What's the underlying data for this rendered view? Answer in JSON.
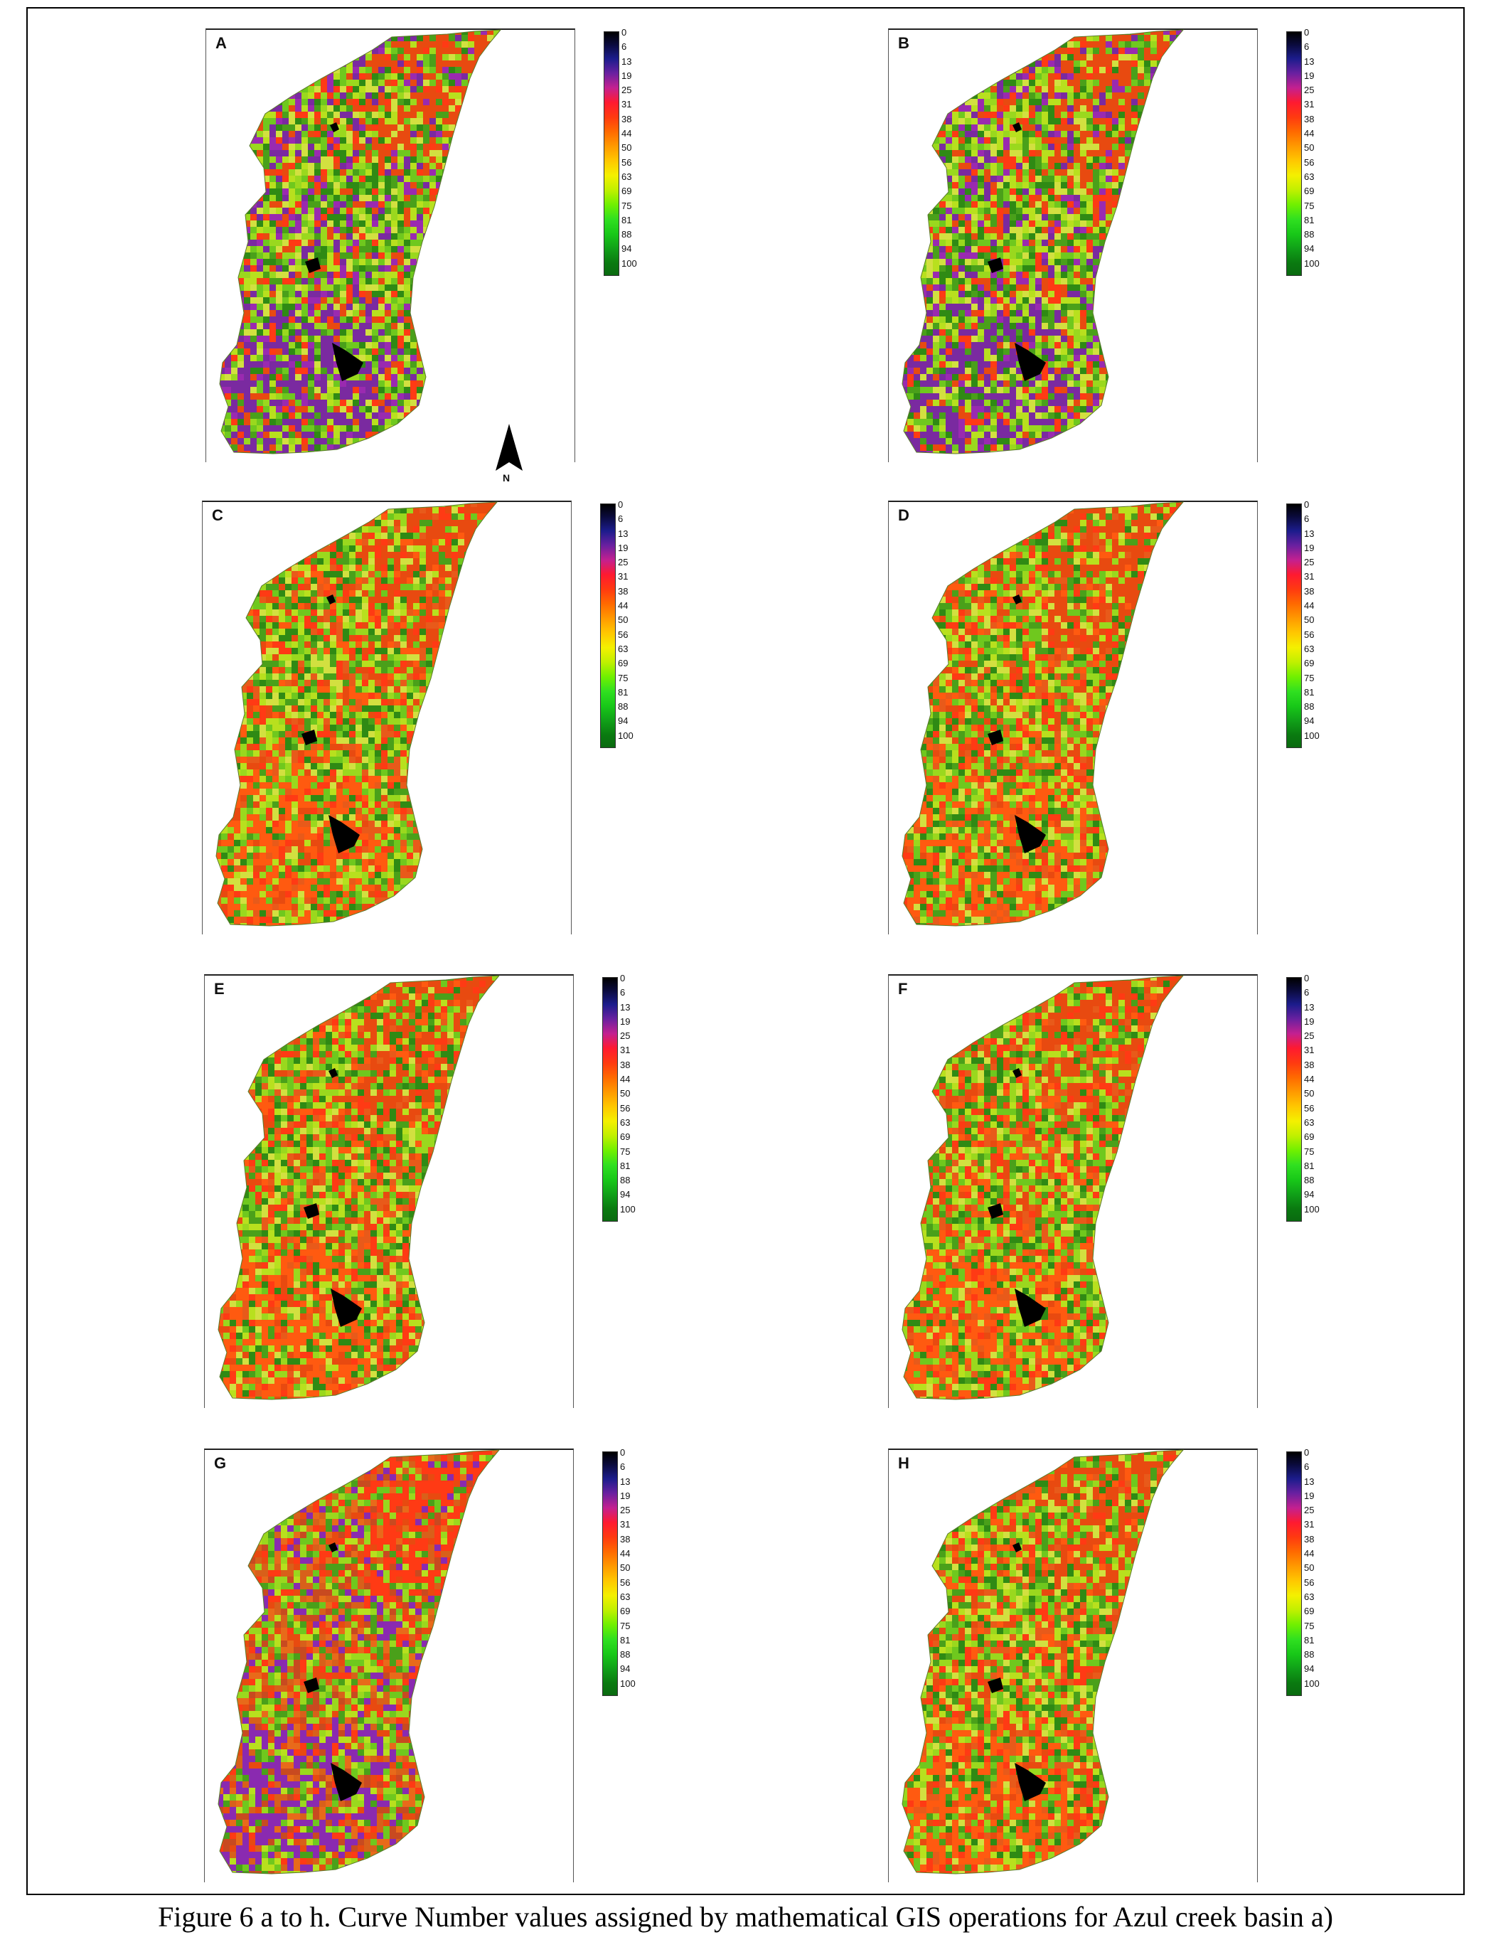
{
  "figure": {
    "caption": "Figure 6 a to h. Curve Number values assigned by mathematical GIS operations for Azul creek basin a)",
    "north_label": "N",
    "legend_ticks": [
      "0",
      "6",
      "13",
      "19",
      "25",
      "31",
      "38",
      "44",
      "50",
      "56",
      "63",
      "69",
      "75",
      "81",
      "88",
      "94",
      "100"
    ],
    "legend_colors": [
      "#000000",
      "#1c1c8c",
      "#c42090",
      "#ff1a30",
      "#ff6a00",
      "#ffc800",
      "#f4f000",
      "#70f000",
      "#18c818",
      "#0a6a10"
    ],
    "panels": [
      {
        "letter": "A",
        "palette": [
          "#6fc81e",
          "#9ad81e",
          "#b8e01e",
          "#4aa01a",
          "#2f8a14",
          "#e84a10",
          "#ff3a14",
          "#7a2aa0",
          "#9a2ab0",
          "#d2e040"
        ]
      },
      {
        "letter": "B",
        "palette": [
          "#6fc81e",
          "#9ad81e",
          "#b8e01e",
          "#4aa01a",
          "#2f8a14",
          "#e84a10",
          "#ff3a14",
          "#7a2aa0",
          "#9a2ab0",
          "#d2e040"
        ]
      },
      {
        "letter": "C",
        "palette": [
          "#6fc81e",
          "#9ad81e",
          "#b8e01e",
          "#4aa01a",
          "#2f8a14",
          "#e84a10",
          "#ff3a14",
          "#ff5a10",
          "#e85a1a",
          "#d2e040"
        ]
      },
      {
        "letter": "D",
        "palette": [
          "#6fc81e",
          "#9ad81e",
          "#b8e01e",
          "#4aa01a",
          "#2f8a14",
          "#e84a10",
          "#ff3a14",
          "#ff5a10",
          "#e85a1a",
          "#d2e040"
        ]
      },
      {
        "letter": "E",
        "palette": [
          "#6fc81e",
          "#9ad81e",
          "#b8e01e",
          "#4aa01a",
          "#2f8a14",
          "#e84a10",
          "#ff3a14",
          "#ff5a10",
          "#e85a1a",
          "#d2e040"
        ]
      },
      {
        "letter": "F",
        "palette": [
          "#6fc81e",
          "#9ad81e",
          "#b8e01e",
          "#4aa01a",
          "#2f8a14",
          "#e84a10",
          "#ff3a14",
          "#ff5a10",
          "#e85a1a",
          "#d2e040"
        ]
      },
      {
        "letter": "G",
        "palette": [
          "#e86a1a",
          "#d8601a",
          "#9ad81e",
          "#6fc81e",
          "#4aa01a",
          "#ff3a14",
          "#c84a20",
          "#8a2ab0",
          "#b8e01e",
          "#e84a10"
        ]
      },
      {
        "letter": "H",
        "palette": [
          "#6fc81e",
          "#9ad81e",
          "#b8e01e",
          "#4aa01a",
          "#2f8a14",
          "#e84a10",
          "#ff3a14",
          "#ff5a10",
          "#e85a1a",
          "#d2e040"
        ]
      }
    ]
  }
}
